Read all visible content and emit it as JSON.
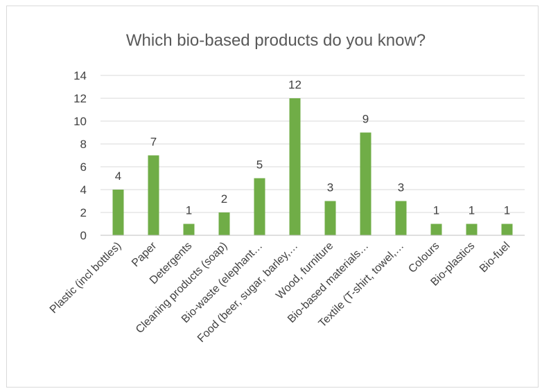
{
  "chart_data": {
    "type": "bar",
    "title": "Which bio-based products do you know?",
    "categories": [
      "Plastic (incl bottles)",
      "Paper",
      "Detergents",
      "Cleaning products (soap)",
      "Bio-waste (elephant…",
      "Food (beer, sugar, barley,…",
      "Wood, furniture",
      "Bio-based materials…",
      "Textile (T-shirt, towel,…",
      "Colours",
      "Bio-plastics",
      "Bio-fuel"
    ],
    "values": [
      4,
      7,
      1,
      2,
      5,
      12,
      3,
      9,
      3,
      1,
      1,
      1
    ],
    "ylim": [
      0,
      14
    ],
    "yticks": [
      0,
      2,
      4,
      6,
      8,
      10,
      12,
      14
    ],
    "grid": true,
    "legend": "none",
    "data_labels": true,
    "bar_color": "#70ad47",
    "grid_color": "#d9d9d9"
  }
}
